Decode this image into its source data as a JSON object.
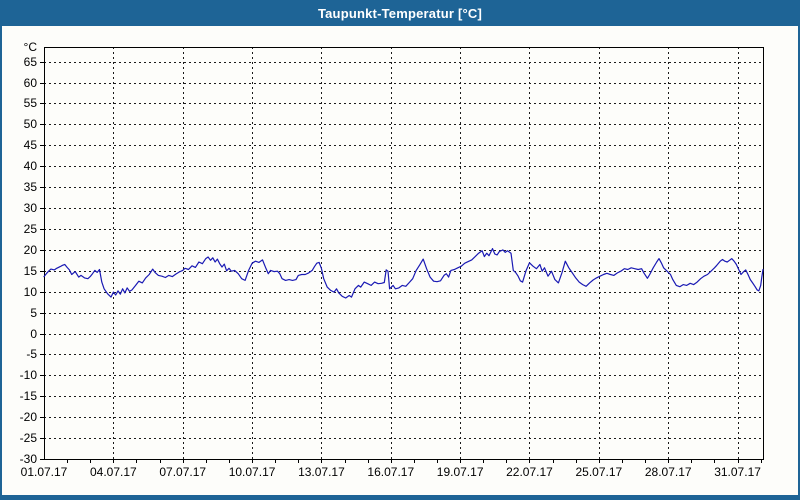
{
  "window": {
    "title": "Taupunkt-Temperatur [°C]"
  },
  "colors": {
    "titlebar": "#1e6496",
    "title_text": "#ffffff",
    "border": "#1e6496",
    "background": "#fdfdfa",
    "grid": "#1a1a1a",
    "axis": "#000000",
    "label": "#000000",
    "line": "#1a1ab4"
  },
  "chart_data": {
    "type": "line",
    "title": "Taupunkt-Temperatur [°C]",
    "y_unit": "°C",
    "xlabel": "",
    "ylabel": "°C",
    "ylim": [
      -30,
      68.5
    ],
    "xlim_days": [
      0,
      31.1
    ],
    "grid": "dashed",
    "legend_position": "none",
    "y_ticks": [
      65,
      60,
      55,
      50,
      45,
      40,
      35,
      30,
      25,
      20,
      15,
      10,
      5,
      0,
      -5,
      -10,
      -15,
      -20,
      -25,
      -30
    ],
    "x_ticks": [
      {
        "day": 0,
        "label": "01.07.17"
      },
      {
        "day": 3,
        "label": "04.07.17"
      },
      {
        "day": 6,
        "label": "07.07.17"
      },
      {
        "day": 9,
        "label": "10.07.17"
      },
      {
        "day": 12,
        "label": "13.07.17"
      },
      {
        "day": 15,
        "label": "16.07.17"
      },
      {
        "day": 18,
        "label": "19.07.17"
      },
      {
        "day": 21,
        "label": "22.07.17"
      },
      {
        "day": 24,
        "label": "25.07.17"
      },
      {
        "day": 27,
        "label": "28.07.17"
      },
      {
        "day": 30,
        "label": "31.07.17"
      }
    ],
    "x_minor_tick_step_days": 1,
    "series": [
      {
        "name": "Taupunkt-Temperatur",
        "color": "#1a1ab4",
        "points": [
          [
            0,
            13.6
          ],
          [
            0.1,
            14.3
          ],
          [
            0.2,
            14.9
          ],
          [
            0.3,
            15.4
          ],
          [
            0.45,
            15.2
          ],
          [
            0.55,
            15.6
          ],
          [
            0.7,
            16.0
          ],
          [
            0.8,
            16.3
          ],
          [
            0.9,
            16.5
          ],
          [
            1.0,
            15.8
          ],
          [
            1.1,
            15.2
          ],
          [
            1.2,
            14.1
          ],
          [
            1.35,
            14.8
          ],
          [
            1.5,
            13.5
          ],
          [
            1.6,
            13.9
          ],
          [
            1.75,
            13.3
          ],
          [
            1.9,
            13.1
          ],
          [
            2.0,
            13.6
          ],
          [
            2.1,
            14.3
          ],
          [
            2.2,
            15.1
          ],
          [
            2.3,
            14.6
          ],
          [
            2.4,
            15.3
          ],
          [
            2.5,
            12.3
          ],
          [
            2.6,
            10.7
          ],
          [
            2.75,
            9.5
          ],
          [
            2.9,
            8.7
          ],
          [
            3.0,
            9.9
          ],
          [
            3.1,
            9.2
          ],
          [
            3.2,
            10.2
          ],
          [
            3.3,
            9.4
          ],
          [
            3.4,
            10.7
          ],
          [
            3.5,
            9.7
          ],
          [
            3.6,
            10.9
          ],
          [
            3.7,
            10.1
          ],
          [
            3.8,
            10.4
          ],
          [
            3.95,
            11.4
          ],
          [
            4.1,
            12.5
          ],
          [
            4.25,
            12.1
          ],
          [
            4.4,
            13.3
          ],
          [
            4.55,
            14.1
          ],
          [
            4.7,
            15.4
          ],
          [
            4.8,
            14.6
          ],
          [
            4.95,
            13.9
          ],
          [
            5.1,
            13.7
          ],
          [
            5.25,
            13.4
          ],
          [
            5.4,
            13.9
          ],
          [
            5.55,
            13.6
          ],
          [
            5.7,
            14.2
          ],
          [
            5.85,
            14.7
          ],
          [
            6.0,
            15.1
          ],
          [
            6.1,
            15.6
          ],
          [
            6.25,
            15.3
          ],
          [
            6.4,
            16.2
          ],
          [
            6.55,
            15.8
          ],
          [
            6.7,
            17.1
          ],
          [
            6.85,
            16.7
          ],
          [
            7.0,
            17.9
          ],
          [
            7.1,
            18.3
          ],
          [
            7.2,
            17.5
          ],
          [
            7.3,
            18.1
          ],
          [
            7.4,
            17.1
          ],
          [
            7.5,
            17.8
          ],
          [
            7.6,
            16.7
          ],
          [
            7.7,
            15.9
          ],
          [
            7.8,
            16.6
          ],
          [
            7.9,
            15.0
          ],
          [
            8.0,
            15.6
          ],
          [
            8.1,
            14.9
          ],
          [
            8.25,
            15.1
          ],
          [
            8.4,
            14.3
          ],
          [
            8.55,
            13.1
          ],
          [
            8.7,
            12.7
          ],
          [
            8.85,
            15.1
          ],
          [
            9.0,
            16.8
          ],
          [
            9.15,
            17.3
          ],
          [
            9.3,
            17.0
          ],
          [
            9.45,
            17.6
          ],
          [
            9.6,
            15.6
          ],
          [
            9.7,
            14.3
          ],
          [
            9.8,
            15.1
          ],
          [
            9.95,
            14.8
          ],
          [
            10.1,
            14.9
          ],
          [
            10.2,
            14.3
          ],
          [
            10.3,
            13.1
          ],
          [
            10.45,
            12.7
          ],
          [
            10.6,
            12.9
          ],
          [
            10.75,
            12.7
          ],
          [
            10.9,
            12.9
          ],
          [
            11.0,
            13.9
          ],
          [
            11.15,
            14.1
          ],
          [
            11.3,
            14.1
          ],
          [
            11.45,
            14.5
          ],
          [
            11.6,
            15.1
          ],
          [
            11.7,
            16.0
          ],
          [
            11.8,
            16.8
          ],
          [
            11.9,
            17.0
          ],
          [
            12.0,
            15.6
          ],
          [
            12.1,
            13.1
          ],
          [
            12.25,
            11.1
          ],
          [
            12.4,
            10.3
          ],
          [
            12.55,
            9.9
          ],
          [
            12.65,
            10.7
          ],
          [
            12.75,
            9.7
          ],
          [
            12.9,
            8.9
          ],
          [
            13.05,
            8.5
          ],
          [
            13.2,
            9.1
          ],
          [
            13.3,
            8.7
          ],
          [
            13.45,
            10.7
          ],
          [
            13.6,
            11.5
          ],
          [
            13.7,
            11.1
          ],
          [
            13.85,
            12.3
          ],
          [
            14.0,
            11.9
          ],
          [
            14.15,
            11.5
          ],
          [
            14.3,
            12.3
          ],
          [
            14.45,
            11.9
          ],
          [
            14.6,
            12.0
          ],
          [
            14.72,
            12.2
          ],
          [
            14.8,
            15.2
          ],
          [
            14.88,
            14.9
          ],
          [
            14.95,
            10.7
          ],
          [
            15.1,
            11.5
          ],
          [
            15.2,
            10.7
          ],
          [
            15.35,
            10.9
          ],
          [
            15.5,
            11.5
          ],
          [
            15.65,
            11.3
          ],
          [
            15.8,
            12.2
          ],
          [
            15.95,
            13.1
          ],
          [
            16.1,
            15.1
          ],
          [
            16.25,
            16.4
          ],
          [
            16.4,
            17.8
          ],
          [
            16.55,
            15.5
          ],
          [
            16.7,
            13.5
          ],
          [
            16.85,
            12.5
          ],
          [
            17.0,
            12.4
          ],
          [
            17.15,
            12.6
          ],
          [
            17.3,
            13.9
          ],
          [
            17.4,
            14.3
          ],
          [
            17.5,
            13.5
          ],
          [
            17.6,
            15.1
          ],
          [
            17.75,
            15.3
          ],
          [
            17.9,
            15.7
          ],
          [
            18.05,
            16.1
          ],
          [
            18.2,
            16.8
          ],
          [
            18.35,
            17.2
          ],
          [
            18.5,
            17.6
          ],
          [
            18.65,
            18.4
          ],
          [
            18.8,
            19.2
          ],
          [
            18.95,
            19.8
          ],
          [
            19.05,
            18.4
          ],
          [
            19.15,
            19.2
          ],
          [
            19.25,
            18.6
          ],
          [
            19.4,
            20.3
          ],
          [
            19.5,
            19.0
          ],
          [
            19.6,
            18.8
          ],
          [
            19.7,
            19.6
          ],
          [
            19.85,
            20.0
          ],
          [
            19.95,
            19.4
          ],
          [
            20.05,
            19.8
          ],
          [
            20.2,
            19.2
          ],
          [
            20.3,
            15.1
          ],
          [
            20.4,
            14.6
          ],
          [
            20.5,
            13.8
          ],
          [
            20.6,
            12.6
          ],
          [
            20.7,
            12.3
          ],
          [
            20.85,
            15.0
          ],
          [
            21.0,
            16.9
          ],
          [
            21.15,
            16.1
          ],
          [
            21.3,
            15.5
          ],
          [
            21.45,
            16.5
          ],
          [
            21.55,
            14.9
          ],
          [
            21.65,
            15.7
          ],
          [
            21.8,
            13.7
          ],
          [
            21.95,
            14.9
          ],
          [
            22.1,
            12.9
          ],
          [
            22.25,
            12.1
          ],
          [
            22.4,
            14.5
          ],
          [
            22.55,
            17.3
          ],
          [
            22.7,
            15.7
          ],
          [
            22.85,
            14.5
          ],
          [
            23.0,
            13.3
          ],
          [
            23.15,
            12.3
          ],
          [
            23.3,
            11.7
          ],
          [
            23.45,
            11.3
          ],
          [
            23.6,
            12.1
          ],
          [
            23.75,
            12.8
          ],
          [
            23.9,
            13.3
          ],
          [
            24.05,
            13.7
          ],
          [
            24.2,
            14.1
          ],
          [
            24.35,
            14.4
          ],
          [
            24.5,
            14.1
          ],
          [
            24.65,
            13.9
          ],
          [
            24.8,
            14.5
          ],
          [
            24.95,
            14.9
          ],
          [
            25.1,
            15.5
          ],
          [
            25.25,
            15.3
          ],
          [
            25.4,
            15.7
          ],
          [
            25.55,
            15.5
          ],
          [
            25.7,
            15.3
          ],
          [
            25.85,
            15.5
          ],
          [
            25.95,
            14.5
          ],
          [
            26.1,
            13.2
          ],
          [
            26.2,
            14.1
          ],
          [
            26.35,
            15.7
          ],
          [
            26.5,
            17.1
          ],
          [
            26.6,
            17.9
          ],
          [
            26.7,
            16.9
          ],
          [
            26.8,
            15.7
          ],
          [
            26.95,
            14.9
          ],
          [
            27.1,
            14.1
          ],
          [
            27.2,
            12.9
          ],
          [
            27.35,
            11.5
          ],
          [
            27.5,
            11.2
          ],
          [
            27.65,
            11.7
          ],
          [
            27.8,
            11.5
          ],
          [
            27.95,
            12.0
          ],
          [
            28.1,
            11.7
          ],
          [
            28.25,
            12.3
          ],
          [
            28.4,
            13.1
          ],
          [
            28.55,
            13.7
          ],
          [
            28.7,
            14.1
          ],
          [
            28.85,
            14.9
          ],
          [
            29.0,
            15.7
          ],
          [
            29.1,
            16.3
          ],
          [
            29.25,
            17.3
          ],
          [
            29.35,
            17.7
          ],
          [
            29.45,
            17.3
          ],
          [
            29.55,
            17.1
          ],
          [
            29.65,
            17.5
          ],
          [
            29.75,
            17.9
          ],
          [
            29.85,
            17.3
          ],
          [
            29.95,
            16.5
          ],
          [
            30.05,
            15.3
          ],
          [
            30.15,
            14.1
          ],
          [
            30.25,
            14.7
          ],
          [
            30.35,
            15.2
          ],
          [
            30.45,
            14.1
          ],
          [
            30.55,
            12.9
          ],
          [
            30.65,
            12.1
          ],
          [
            30.75,
            11.3
          ],
          [
            30.85,
            10.4
          ],
          [
            30.92,
            10.2
          ],
          [
            31.0,
            11.5
          ],
          [
            31.05,
            13.5
          ],
          [
            31.1,
            15.3
          ]
        ]
      }
    ]
  }
}
